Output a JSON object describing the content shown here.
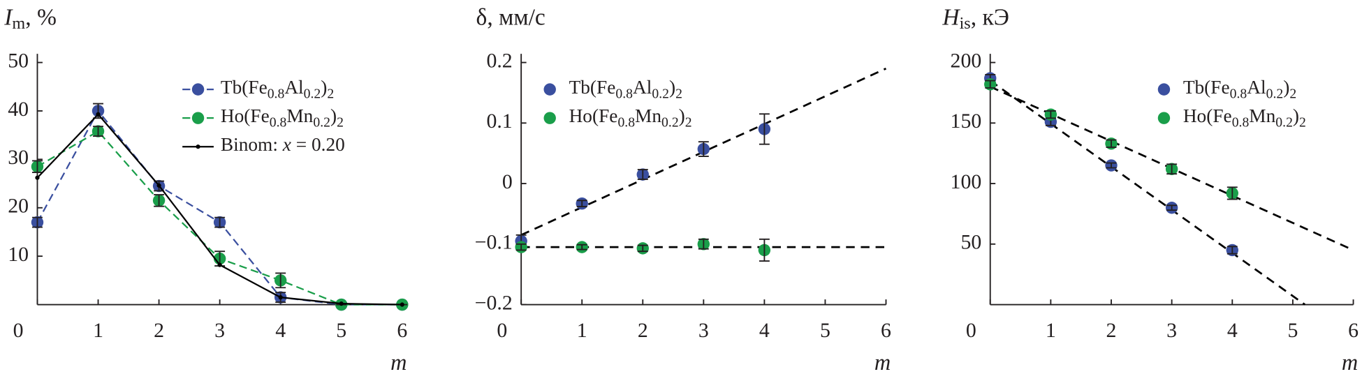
{
  "chart_data": [
    {
      "type": "line",
      "title": [
        {
          "text": "I",
          "style": "italic"
        },
        {
          "text": "m",
          "style": "sub"
        },
        {
          "text": ", %"
        }
      ],
      "xlabel": "m",
      "xlim": [
        0,
        6
      ],
      "xticks": [
        0,
        1,
        2,
        3,
        4,
        5,
        6
      ],
      "ylim": [
        0,
        50
      ],
      "yticks": [
        10,
        20,
        30,
        40,
        50
      ],
      "legend": "upper right",
      "series": [
        {
          "name": [
            {
              "text": "Tb(Fe"
            },
            {
              "text": "0.8",
              "style": "sub"
            },
            {
              "text": "Al"
            },
            {
              "text": "0.2",
              "style": "sub"
            },
            {
              "text": ")"
            },
            {
              "text": "2",
              "style": "sub"
            }
          ],
          "color": "#3a4f9f",
          "style": "dashed",
          "marker": "circle",
          "x": [
            0,
            1,
            2,
            3,
            4,
            5,
            6
          ],
          "values": [
            17,
            40,
            24.5,
            17,
            1.5,
            0,
            0
          ],
          "errors": [
            1,
            1.5,
            1,
            1,
            1,
            0,
            0
          ]
        },
        {
          "name": [
            {
              "text": "Ho(Fe"
            },
            {
              "text": "0.8",
              "style": "sub"
            },
            {
              "text": "Mn"
            },
            {
              "text": "0.2",
              "style": "sub"
            },
            {
              "text": ")"
            },
            {
              "text": "2",
              "style": "sub"
            }
          ],
          "color": "#1a9e4a",
          "style": "dashed",
          "marker": "circle",
          "x": [
            0,
            1,
            2,
            3,
            4,
            5,
            6
          ],
          "values": [
            28.5,
            35.8,
            21.5,
            9.5,
            5,
            0,
            0
          ],
          "errors": [
            1.2,
            1,
            1.2,
            1.5,
            1.5,
            0,
            0
          ]
        },
        {
          "name": [
            {
              "text": "Binom: "
            },
            {
              "text": "x",
              "style": "italic"
            },
            {
              "text": " = 0.20"
            }
          ],
          "color": "#000000",
          "style": "solid",
          "marker": "dot",
          "x": [
            0,
            1,
            2,
            3,
            4,
            5,
            6
          ],
          "values": [
            26.2,
            39.3,
            24.6,
            8.2,
            1.5,
            0.2,
            0
          ]
        }
      ]
    },
    {
      "type": "scatter",
      "title": [
        {
          "text": "δ, мм/с"
        }
      ],
      "xlabel": "m",
      "xlim": [
        0,
        6
      ],
      "xticks": [
        0,
        1,
        2,
        3,
        4,
        5,
        6
      ],
      "ylim": [
        -0.2,
        0.2
      ],
      "yticks": [
        {
          "value": -0.2,
          "label": "−0.2"
        },
        {
          "value": -0.1,
          "label": "−0.1"
        },
        0,
        0.1,
        0.2
      ],
      "legend": "upper left",
      "series": [
        {
          "name": [
            {
              "text": "Tb(Fe"
            },
            {
              "text": "0.8",
              "style": "sub"
            },
            {
              "text": "Al"
            },
            {
              "text": "0.2",
              "style": "sub"
            },
            {
              "text": ")"
            },
            {
              "text": "2",
              "style": "sub"
            }
          ],
          "color": "#3a4f9f",
          "marker": "circle",
          "x": [
            0,
            1,
            2,
            3,
            4
          ],
          "values": [
            -0.095,
            -0.033,
            0.015,
            0.057,
            0.09
          ],
          "errors": [
            0.01,
            0.005,
            0.008,
            0.012,
            0.025
          ]
        },
        {
          "name": [
            {
              "text": "Ho(Fe"
            },
            {
              "text": "0.8",
              "style": "sub"
            },
            {
              "text": "Mn"
            },
            {
              "text": "0.2",
              "style": "sub"
            },
            {
              "text": ")"
            },
            {
              "text": "2",
              "style": "sub"
            }
          ],
          "color": "#1a9e4a",
          "marker": "circle",
          "x": [
            0,
            1,
            2,
            3,
            4
          ],
          "values": [
            -0.105,
            -0.105,
            -0.107,
            -0.1,
            -0.11
          ],
          "errors": [
            0.005,
            0.004,
            0.005,
            0.008,
            0.018
          ]
        }
      ],
      "fits": [
        {
          "x": [
            0,
            6
          ],
          "values": [
            -0.085,
            0.19
          ]
        },
        {
          "x": [
            0,
            6
          ],
          "values": [
            -0.105,
            -0.105
          ]
        }
      ]
    },
    {
      "type": "scatter",
      "title": [
        {
          "text": "H",
          "style": "italic"
        },
        {
          "text": "is",
          "style": "sub"
        },
        {
          "text": ", кЭ"
        }
      ],
      "xlabel": "m",
      "xlim": [
        0,
        6
      ],
      "xticks": [
        0,
        1,
        2,
        3,
        4,
        5,
        6
      ],
      "ylim": [
        0,
        200
      ],
      "yticks": [
        50,
        100,
        150,
        200
      ],
      "legend": "upper right",
      "series": [
        {
          "name": [
            {
              "text": "Tb(Fe"
            },
            {
              "text": "0.8",
              "style": "sub"
            },
            {
              "text": "Al"
            },
            {
              "text": "0.2",
              "style": "sub"
            },
            {
              "text": ")"
            },
            {
              "text": "2",
              "style": "sub"
            }
          ],
          "color": "#3a4f9f",
          "marker": "circle",
          "x": [
            0,
            1,
            2,
            3,
            4
          ],
          "values": [
            187,
            151,
            115,
            80,
            45
          ],
          "errors": [
            3,
            3,
            2,
            2,
            3
          ]
        },
        {
          "name": [
            {
              "text": "Ho(Fe"
            },
            {
              "text": "0.8",
              "style": "sub"
            },
            {
              "text": "Mn"
            },
            {
              "text": "0.2",
              "style": "sub"
            },
            {
              "text": ")"
            },
            {
              "text": "2",
              "style": "sub"
            }
          ],
          "color": "#1a9e4a",
          "marker": "circle",
          "x": [
            0,
            1,
            2,
            3,
            4
          ],
          "values": [
            182,
            157,
            133,
            112,
            92
          ],
          "errors": [
            3,
            3,
            3,
            4,
            5
          ]
        }
      ],
      "fits": [
        {
          "x": [
            0,
            5.2
          ],
          "values": [
            185,
            0
          ]
        },
        {
          "x": [
            0,
            6
          ],
          "values": [
            180,
            45
          ]
        }
      ]
    }
  ]
}
